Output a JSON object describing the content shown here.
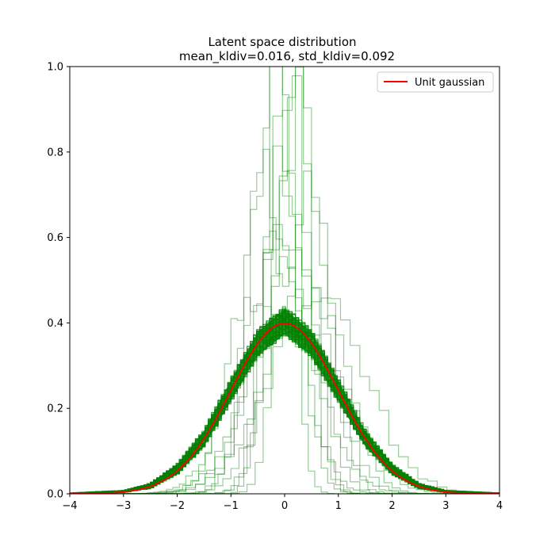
{
  "chart_data": {
    "type": "line",
    "title_line1": "Latent space distribution",
    "title_line2": "mean_kldiv=0.016, std_kldiv=0.092",
    "xlabel": "",
    "ylabel": "",
    "xlim": [
      -4,
      4
    ],
    "ylim": [
      0,
      1.0
    ],
    "xticks": [
      "−4",
      "−3",
      "−2",
      "−1",
      "0",
      "1",
      "2",
      "3",
      "4"
    ],
    "yticks": [
      "0.0",
      "0.2",
      "0.4",
      "0.6",
      "0.8",
      "1.0"
    ],
    "legend_position": "top-right",
    "series": [
      {
        "name": "Unit gaussian",
        "kind": "line",
        "color": "#ff0000",
        "x": [
          -4.0,
          -3.5,
          -3.0,
          -2.5,
          -2.0,
          -1.5,
          -1.0,
          -0.5,
          0.0,
          0.5,
          1.0,
          1.5,
          2.0,
          2.5,
          3.0,
          3.5,
          4.0
        ],
        "y": [
          0.0001,
          0.0009,
          0.0044,
          0.0175,
          0.054,
          0.1295,
          0.242,
          0.352,
          0.399,
          0.352,
          0.242,
          0.1295,
          0.054,
          0.0175,
          0.0044,
          0.0009,
          0.0001
        ]
      },
      {
        "kind": "histogram-band",
        "color": "#008000",
        "x": [
          -4.0,
          -3.0,
          -2.5,
          -2.0,
          -1.5,
          -1.0,
          -0.5,
          0.0,
          0.5,
          1.0,
          1.5,
          2.0,
          2.5,
          3.0,
          4.0
        ],
        "y_low": [
          0.0,
          0.003,
          0.012,
          0.045,
          0.11,
          0.215,
          0.32,
          0.37,
          0.32,
          0.215,
          0.11,
          0.045,
          0.012,
          0.003,
          0.0
        ],
        "y_high": [
          0.002,
          0.008,
          0.025,
          0.07,
          0.15,
          0.27,
          0.385,
          0.44,
          0.385,
          0.27,
          0.15,
          0.07,
          0.025,
          0.008,
          0.002
        ]
      },
      {
        "kind": "step-outliers",
        "color": "#008000",
        "widths": [
          0.25,
          0.3,
          0.35,
          0.4,
          0.45,
          0.5,
          0.55,
          0.6,
          0.65,
          0.7,
          0.8,
          0.9
        ],
        "centers": [
          -0.1,
          0.2,
          0.05,
          -0.2,
          0.3,
          0.0,
          -0.3,
          0.4,
          0.1,
          -0.15,
          0.25,
          0.6
        ],
        "peaks": [
          1.0,
          1.0,
          1.0,
          0.98,
          0.88,
          0.8,
          0.72,
          0.67,
          0.62,
          0.56,
          0.5,
          0.45
        ]
      }
    ]
  }
}
